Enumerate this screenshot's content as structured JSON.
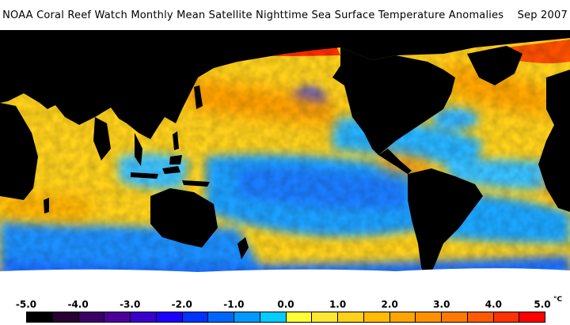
{
  "title": "NOAA Coral Reef Watch Monthly Mean Satellite Nighttime Sea Surface Temperature Anomalies    Sep 2007",
  "colorbar": {
    "tick_labels": [
      "-5.0",
      "-4.0",
      "-3.0",
      "-2.0",
      "-1.0",
      "0.0",
      "1.0",
      "2.0",
      "3.0",
      "4.0",
      "5.0"
    ],
    "unit": "°C",
    "colors": [
      "#000000",
      "#2a0033",
      "#3b0066",
      "#4b0099",
      "#3a00cc",
      "#1e00ff",
      "#0033ff",
      "#0066ff",
      "#0099ff",
      "#00ccff",
      "#ffff33",
      "#ffe633",
      "#ffd11a",
      "#ffbb00",
      "#ffa500",
      "#ff9000",
      "#ff7a00",
      "#ff5a00",
      "#ff3300",
      "#ff0000"
    ]
  },
  "map": {
    "land_color": "#000000",
    "ice_color": "#ffffff",
    "background_color": "#ffffff"
  }
}
